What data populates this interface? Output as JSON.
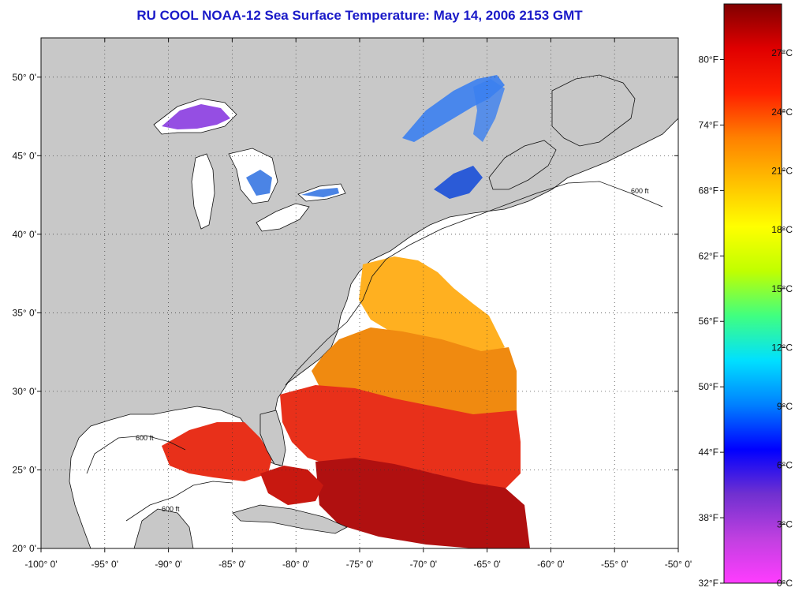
{
  "title": "RU COOL  NOAA-12  Sea Surface Temperature:  May 14, 2006 2153 GMT",
  "map": {
    "lon_range": [
      -100,
      -50
    ],
    "lat_range": [
      20,
      52.5
    ],
    "lon_ticks": [
      {
        "value": -100,
        "label": "-100° 0'"
      },
      {
        "value": -95,
        "label": "-95° 0'"
      },
      {
        "value": -90,
        "label": "-90° 0'"
      },
      {
        "value": -85,
        "label": "-85° 0'"
      },
      {
        "value": -80,
        "label": "-80° 0'"
      },
      {
        "value": -75,
        "label": "-75° 0'"
      },
      {
        "value": -70,
        "label": "-70° 0'"
      },
      {
        "value": -65,
        "label": "-65° 0'"
      },
      {
        "value": -60,
        "label": "-60° 0'"
      },
      {
        "value": -55,
        "label": "-55° 0'"
      },
      {
        "value": -50,
        "label": "-50° 0'"
      }
    ],
    "lat_ticks": [
      {
        "value": 20,
        "label": "20° 0'"
      },
      {
        "value": 25,
        "label": "25° 0'"
      },
      {
        "value": 30,
        "label": "30° 0'"
      },
      {
        "value": 35,
        "label": "35° 0'"
      },
      {
        "value": 40,
        "label": "40° 0'"
      },
      {
        "value": 45,
        "label": "45° 0'"
      },
      {
        "value": 50,
        "label": "50° 0'"
      }
    ],
    "contour_label": "600 ft",
    "grid": true,
    "colors": {
      "land": "#c8c8c8",
      "ocean_no_data": "#ffffff",
      "warm_sst": "#e8301a",
      "hot_sst": "#b01010",
      "mid_sst": "#f08a10",
      "cool_sst": "#ffb020",
      "cold_lake": "#2b6fe0",
      "very_cold_lake": "#8a3be0",
      "grid": "#333333"
    }
  },
  "colorbar": {
    "celsius_labels": [
      {
        "value": 27,
        "label": "27°C"
      },
      {
        "value": 24,
        "label": "24°C"
      },
      {
        "value": 21,
        "label": "21°C"
      },
      {
        "value": 18,
        "label": "18°C"
      },
      {
        "value": 15,
        "label": "15°C"
      },
      {
        "value": 12,
        "label": "12°C"
      },
      {
        "value": 9,
        "label": "9°C"
      },
      {
        "value": 6,
        "label": "6°C"
      },
      {
        "value": 3,
        "label": "3°C"
      },
      {
        "value": 0,
        "label": "0°C"
      }
    ],
    "fahrenheit_labels": [
      {
        "value": 80,
        "label": "80°F"
      },
      {
        "value": 74,
        "label": "74°F"
      },
      {
        "value": 68,
        "label": "68°F"
      },
      {
        "value": 62,
        "label": "62°F"
      },
      {
        "value": 56,
        "label": "56°F"
      },
      {
        "value": 50,
        "label": "50°F"
      },
      {
        "value": 44,
        "label": "44°F"
      },
      {
        "value": 38,
        "label": "38°F"
      },
      {
        "value": 32,
        "label": "32°F"
      }
    ],
    "range_c": [
      0,
      29.5
    ],
    "gradient_stops": [
      "#ff3cff",
      "#c040e0",
      "#7030d0",
      "#0000ff",
      "#0080ff",
      "#00e0ff",
      "#40ff80",
      "#c0ff00",
      "#ffff00",
      "#ffc000",
      "#ff8000",
      "#ff2000",
      "#e00000",
      "#800000"
    ]
  }
}
